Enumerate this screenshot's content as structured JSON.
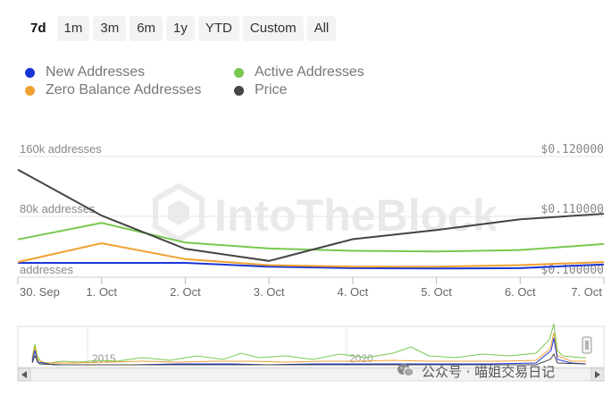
{
  "range_selector": {
    "buttons": [
      "7d",
      "1m",
      "3m",
      "6m",
      "1y",
      "YTD",
      "Custom",
      "All"
    ],
    "selected": "7d"
  },
  "legend": {
    "items": [
      {
        "label": "New Addresses",
        "color": "#1a35d6"
      },
      {
        "label": "Active Addresses",
        "color": "#78c850"
      },
      {
        "label": "Zero Balance Addresses",
        "color": "#f0a030"
      },
      {
        "label": "Price",
        "color": "#444444"
      }
    ]
  },
  "watermark": "IntoTheBlock",
  "footer_text": "公众号 · 喵姐交易日记",
  "navigator": {
    "labels": [
      "2015",
      "2020"
    ]
  },
  "chart_data": {
    "type": "line",
    "x": [
      "30. Sep",
      "1. Oct",
      "2. Oct",
      "3. Oct",
      "4. Oct",
      "5. Oct",
      "6. Oct",
      "7. Oct"
    ],
    "y_left": {
      "ticks": [
        "160k addresses",
        "80k addresses",
        "addresses"
      ],
      "range": [
        0,
        160000
      ]
    },
    "y_right": {
      "ticks": [
        "$0.120000",
        "$0.110000",
        "$0.100000"
      ],
      "range": [
        0.1,
        0.12
      ]
    },
    "series": [
      {
        "name": "New Addresses",
        "color": "#1a35d6",
        "axis": "left",
        "points": [
          [
            "30. Sep",
            19000
          ],
          [
            "1. Oct",
            19000
          ],
          [
            "2. Oct",
            19000
          ],
          [
            "3. Oct",
            14000
          ],
          [
            "4. Oct",
            12000
          ],
          [
            "5. Oct",
            11500
          ],
          [
            "6. Oct",
            12000
          ],
          [
            "7. Oct",
            17000
          ]
        ]
      },
      {
        "name": "Active Addresses",
        "color": "#78c850",
        "axis": "left",
        "points": [
          [
            "30. Sep",
            50000
          ],
          [
            "1. Oct",
            72000
          ],
          [
            "2. Oct",
            46000
          ],
          [
            "3. Oct",
            38000
          ],
          [
            "4. Oct",
            35000
          ],
          [
            "5. Oct",
            34000
          ],
          [
            "6. Oct",
            36000
          ],
          [
            "7. Oct",
            44000
          ]
        ]
      },
      {
        "name": "Zero Balance Addresses",
        "color": "#f0a030",
        "axis": "left",
        "points": [
          [
            "30. Sep",
            20000
          ],
          [
            "1. Oct",
            45000
          ],
          [
            "2. Oct",
            24000
          ],
          [
            "3. Oct",
            16000
          ],
          [
            "4. Oct",
            14000
          ],
          [
            "5. Oct",
            14000
          ],
          [
            "6. Oct",
            16000
          ],
          [
            "7. Oct",
            20000
          ]
        ]
      },
      {
        "name": "Price",
        "color": "#444444",
        "axis": "right",
        "points": [
          [
            "30. Sep",
            0.1178
          ],
          [
            "1. Oct",
            0.1102
          ],
          [
            "2. Oct",
            0.1047
          ],
          [
            "3. Oct",
            0.1027
          ],
          [
            "4. Oct",
            0.1063
          ],
          [
            "5. Oct",
            0.1078
          ],
          [
            "6. Oct",
            0.1096
          ],
          [
            "7. Oct",
            0.1105
          ]
        ]
      }
    ]
  }
}
